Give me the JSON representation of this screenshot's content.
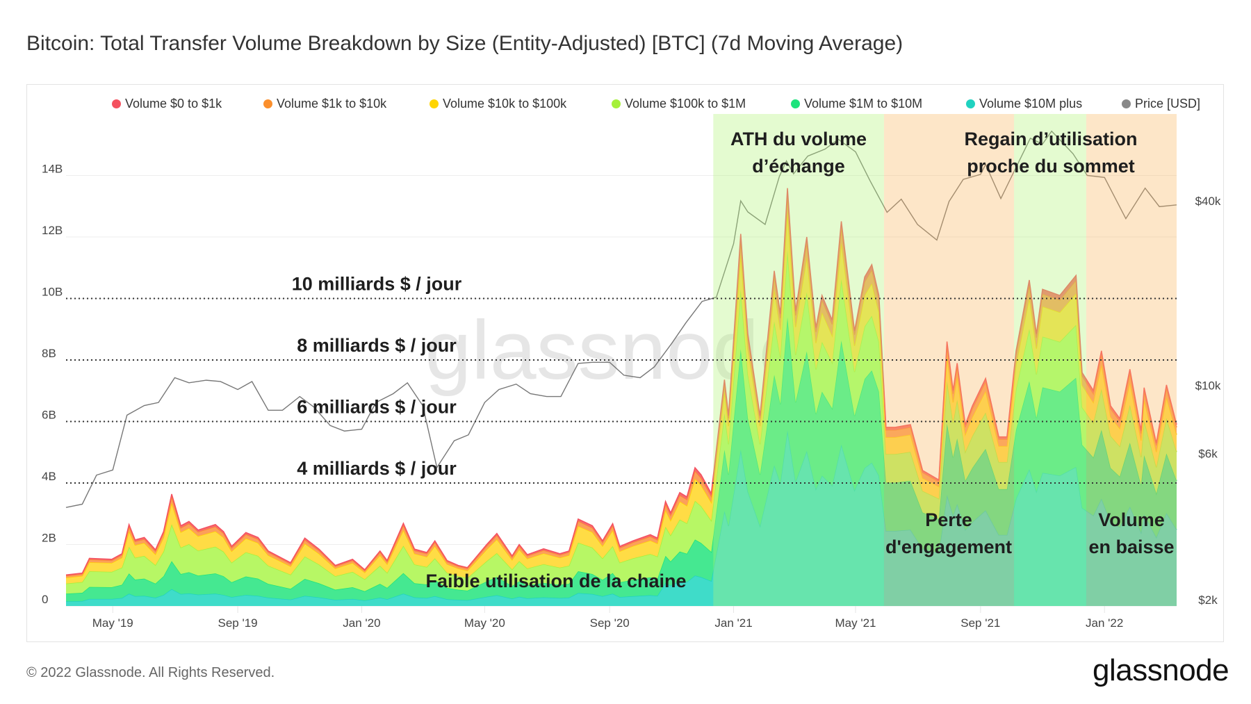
{
  "title": "Bitcoin: Total Transfer Volume Breakdown by Size (Entity-Adjusted) [BTC] (7d Moving Average)",
  "footer": "© 2022 Glassnode. All Rights Reserved.",
  "logo": "glassnode",
  "watermark": "glassnode",
  "legend": [
    {
      "label": "Volume $0 to $1k",
      "color": "#f4515f"
    },
    {
      "label": "Volume $1k to $10k",
      "color": "#fb8f2c"
    },
    {
      "label": "Volume $10k to $100k",
      "color": "#ffd500"
    },
    {
      "label": "Volume $100k to $1M",
      "color": "#a5f03a"
    },
    {
      "label": "Volume $1M to $10M",
      "color": "#1de37c"
    },
    {
      "label": "Volume $10M plus",
      "color": "#20d2c0"
    },
    {
      "label": "Price [USD]",
      "color": "#888888"
    }
  ],
  "annotations": {
    "levels": [
      {
        "label": "10 milliards $ / jour",
        "value": 10
      },
      {
        "label": "8 milliards $ / jour",
        "value": 8
      },
      {
        "label": "6 milliards $ / jour",
        "value": 6
      },
      {
        "label": "4 milliards $ / jour",
        "value": 4
      }
    ],
    "low_usage": "Faible utilisation de la chaine",
    "ath_1": "ATH du volume",
    "ath_2": "d’échange",
    "regain_1": "Regain d’utilisation",
    "regain_2": "proche du sommet",
    "loss_1": "Perte",
    "loss_2": "d'engagement",
    "down_1": "Volume",
    "down_2": "en baisse"
  },
  "chart_data": {
    "type": "area",
    "stacked": true,
    "title": "Bitcoin: Total Transfer Volume Breakdown by Size (Entity-Adjusted) [BTC] (7d Moving Average)",
    "xlim": [
      "2019-03-16",
      "2022-03-13"
    ],
    "ylim": [
      0,
      16
    ],
    "y_ticks": [
      {
        "label": "0",
        "value": 0
      },
      {
        "label": "2B",
        "value": 2
      },
      {
        "label": "4B",
        "value": 4
      },
      {
        "label": "6B",
        "value": 6
      },
      {
        "label": "8B",
        "value": 8
      },
      {
        "label": "10B",
        "value": 10
      },
      {
        "label": "12B",
        "value": 12
      },
      {
        "label": "14B",
        "value": 14
      }
    ],
    "x_ticks": [
      {
        "label": "May '19",
        "date": "2019-05-01"
      },
      {
        "label": "Sep '19",
        "date": "2019-09-01"
      },
      {
        "label": "Jan '20",
        "date": "2020-01-01"
      },
      {
        "label": "May '20",
        "date": "2020-05-01"
      },
      {
        "label": "Sep '20",
        "date": "2020-09-01"
      },
      {
        "label": "Jan '21",
        "date": "2021-01-01"
      },
      {
        "label": "May '21",
        "date": "2021-05-01"
      },
      {
        "label": "Sep '21",
        "date": "2021-09-01"
      },
      {
        "label": "Jan '22",
        "date": "2022-01-01"
      }
    ],
    "price_axis": {
      "scale": "log",
      "ylim": [
        2000,
        80000
      ],
      "ticks": [
        {
          "label": "$2k",
          "value": 2000
        },
        {
          "label": "$6k",
          "value": 6000
        },
        {
          "label": "$10k",
          "value": 10000
        },
        {
          "label": "$40k",
          "value": 40000
        }
      ]
    },
    "grid": true,
    "legend_position": "top",
    "highlight_periods": [
      {
        "start": "2020-12-12",
        "end": "2021-05-29",
        "color": "#b2f379"
      },
      {
        "start": "2021-05-29",
        "end": "2021-10-04",
        "color": "#f9b862"
      },
      {
        "start": "2021-10-04",
        "end": "2021-12-14",
        "color": "#b2f379"
      },
      {
        "start": "2021-12-14",
        "end": "2022-03-13",
        "color": "#f9b862"
      }
    ],
    "dates": [
      "2019-03-16",
      "2019-04-01",
      "2019-04-08",
      "2019-04-30",
      "2019-05-10",
      "2019-05-17",
      "2019-05-23",
      "2019-06-01",
      "2019-06-12",
      "2019-06-20",
      "2019-06-28",
      "2019-07-07",
      "2019-07-15",
      "2019-07-24",
      "2019-08-10",
      "2019-08-18",
      "2019-08-26",
      "2019-09-09",
      "2019-09-21",
      "2019-10-01",
      "2019-10-23",
      "2019-11-06",
      "2019-11-20",
      "2019-12-06",
      "2019-12-23",
      "2020-01-04",
      "2020-01-19",
      "2020-01-26",
      "2020-02-11",
      "2020-02-22",
      "2020-03-05",
      "2020-03-13",
      "2020-03-25",
      "2020-04-05",
      "2020-04-14",
      "2020-05-03",
      "2020-05-13",
      "2020-05-28",
      "2020-06-04",
      "2020-06-12",
      "2020-06-28",
      "2020-07-14",
      "2020-07-23",
      "2020-08-01",
      "2020-08-15",
      "2020-08-25",
      "2020-09-04",
      "2020-09-11",
      "2020-09-24",
      "2020-10-11",
      "2020-10-18",
      "2020-10-26",
      "2020-10-31",
      "2020-11-09",
      "2020-11-16",
      "2020-11-24",
      "2020-11-30",
      "2020-12-10",
      "2020-12-23",
      "2020-12-27",
      "2021-01-08",
      "2021-01-15",
      "2021-01-27",
      "2021-02-02",
      "2021-02-10",
      "2021-02-16",
      "2021-02-23",
      "2021-03-03",
      "2021-03-14",
      "2021-03-23",
      "2021-03-29",
      "2021-04-08",
      "2021-04-17",
      "2021-04-30",
      "2021-05-10",
      "2021-05-17",
      "2021-05-24",
      "2021-05-31",
      "2021-06-09",
      "2021-06-24",
      "2021-07-06",
      "2021-07-22",
      "2021-07-30",
      "2021-08-05",
      "2021-08-09",
      "2021-08-17",
      "2021-08-24",
      "2021-09-06",
      "2021-09-19",
      "2021-09-27",
      "2021-10-06",
      "2021-10-19",
      "2021-10-26",
      "2021-11-01",
      "2021-11-18",
      "2021-12-04",
      "2021-12-10",
      "2021-12-21",
      "2021-12-29",
      "2022-01-07",
      "2022-01-16",
      "2022-01-26",
      "2022-02-06",
      "2022-02-09",
      "2022-02-21",
      "2022-03-03",
      "2022-03-13"
    ],
    "series": [
      {
        "name": "Volume $10M plus",
        "color": "#20d2c0",
        "fill": "#3fdcc9",
        "values": [
          0.15,
          0.16,
          0.23,
          0.23,
          0.26,
          0.4,
          0.32,
          0.33,
          0.27,
          0.36,
          0.55,
          0.39,
          0.41,
          0.37,
          0.4,
          0.36,
          0.29,
          0.36,
          0.33,
          0.27,
          0.21,
          0.33,
          0.28,
          0.2,
          0.23,
          0.18,
          0.27,
          0.22,
          0.4,
          0.28,
          0.26,
          0.32,
          0.22,
          0.2,
          0.19,
          0.3,
          0.35,
          0.24,
          0.3,
          0.25,
          0.28,
          0.26,
          0.27,
          0.42,
          0.39,
          0.32,
          0.4,
          0.29,
          0.32,
          0.35,
          0.33,
          0.75,
          0.66,
          0.81,
          0.78,
          0.99,
          0.94,
          0.81,
          3.09,
          2.6,
          5.08,
          3.72,
          2.6,
          3.44,
          4.58,
          3.99,
          5.71,
          4.03,
          5.04,
          3.8,
          4.24,
          3.91,
          5.25,
          3.76,
          4.49,
          4.66,
          4.24,
          2.44,
          2.44,
          2.48,
          1.85,
          1.72,
          3.61,
          2.94,
          3.32,
          2.48,
          2.73,
          3.11,
          2.31,
          2.31,
          3.49,
          4.45,
          3.72,
          4.33,
          4.24,
          4.52,
          3.19,
          2.94,
          3.49,
          2.73,
          2.56,
          3.23,
          2.39,
          2.98,
          2.23,
          3.02,
          2.48
        ]
      },
      {
        "name": "Volume $1M to $10M",
        "color": "#1de37c",
        "fill": "#45e891",
        "values": [
          0.25,
          0.27,
          0.39,
          0.38,
          0.43,
          0.66,
          0.54,
          0.56,
          0.46,
          0.61,
          0.91,
          0.65,
          0.69,
          0.62,
          0.66,
          0.61,
          0.48,
          0.6,
          0.56,
          0.45,
          0.35,
          0.55,
          0.46,
          0.33,
          0.38,
          0.3,
          0.45,
          0.37,
          0.67,
          0.46,
          0.44,
          0.53,
          0.37,
          0.33,
          0.31,
          0.5,
          0.59,
          0.41,
          0.5,
          0.42,
          0.47,
          0.43,
          0.45,
          0.71,
          0.65,
          0.53,
          0.67,
          0.48,
          0.53,
          0.58,
          0.55,
          0.88,
          0.79,
          0.96,
          0.92,
          1.17,
          1.11,
          0.95,
          1.99,
          1.67,
          3.27,
          2.39,
          1.67,
          2.21,
          2.94,
          2.57,
          3.67,
          2.59,
          3.24,
          2.44,
          2.73,
          2.51,
          3.38,
          2.42,
          2.89,
          3.0,
          2.73,
          1.57,
          1.57,
          1.59,
          1.19,
          1.11,
          2.32,
          1.89,
          2.13,
          1.59,
          1.76,
          2.0,
          1.49,
          1.49,
          2.24,
          2.86,
          2.39,
          2.78,
          2.73,
          2.9,
          2.05,
          1.89,
          2.24,
          1.76,
          1.65,
          2.08,
          1.54,
          1.92,
          1.43,
          1.94,
          1.59
        ]
      },
      {
        "name": "Volume $100k to $1M",
        "color": "#a5f03a",
        "fill": "#b7f765",
        "values": [
          0.33,
          0.35,
          0.51,
          0.5,
          0.56,
          0.87,
          0.71,
          0.74,
          0.6,
          0.8,
          1.2,
          0.86,
          0.91,
          0.81,
          0.87,
          0.8,
          0.64,
          0.79,
          0.74,
          0.59,
          0.46,
          0.73,
          0.61,
          0.44,
          0.5,
          0.39,
          0.59,
          0.49,
          0.89,
          0.61,
          0.57,
          0.7,
          0.49,
          0.44,
          0.41,
          0.66,
          0.78,
          0.54,
          0.66,
          0.55,
          0.61,
          0.56,
          0.59,
          0.93,
          0.86,
          0.7,
          0.88,
          0.64,
          0.7,
          0.76,
          0.73,
          0.95,
          0.85,
          1.04,
          0.99,
          1.26,
          1.2,
          1.02,
          1.18,
          0.99,
          1.94,
          1.42,
          0.99,
          1.31,
          1.74,
          1.52,
          2.18,
          1.54,
          1.92,
          1.45,
          1.62,
          1.49,
          2.0,
          1.43,
          1.71,
          1.78,
          1.62,
          0.93,
          0.93,
          0.94,
          0.7,
          0.66,
          1.38,
          1.12,
          1.26,
          0.94,
          1.04,
          1.18,
          0.88,
          0.88,
          1.33,
          1.7,
          1.42,
          1.65,
          1.62,
          1.72,
          1.22,
          1.12,
          1.33,
          1.04,
          0.98,
          1.23,
          0.91,
          1.14,
          0.85,
          1.15,
          0.94
        ]
      },
      {
        "name": "Volume $10k to $100k",
        "color": "#ffd500",
        "fill": "#ffdc45",
        "values": [
          0.19,
          0.2,
          0.29,
          0.29,
          0.32,
          0.5,
          0.41,
          0.42,
          0.35,
          0.46,
          0.69,
          0.5,
          0.52,
          0.47,
          0.5,
          0.46,
          0.37,
          0.45,
          0.42,
          0.34,
          0.27,
          0.42,
          0.35,
          0.25,
          0.29,
          0.22,
          0.34,
          0.28,
          0.51,
          0.35,
          0.33,
          0.4,
          0.28,
          0.25,
          0.24,
          0.38,
          0.45,
          0.31,
          0.38,
          0.32,
          0.35,
          0.32,
          0.34,
          0.54,
          0.5,
          0.4,
          0.51,
          0.37,
          0.4,
          0.44,
          0.42,
          0.54,
          0.48,
          0.59,
          0.57,
          0.72,
          0.68,
          0.59,
          0.7,
          0.59,
          1.15,
          0.84,
          0.59,
          0.78,
          1.04,
          0.9,
          1.29,
          0.91,
          1.14,
          0.86,
          0.96,
          0.88,
          1.19,
          0.85,
          1.02,
          1.05,
          0.96,
          0.55,
          0.55,
          0.56,
          0.42,
          0.39,
          0.82,
          0.67,
          0.75,
          0.56,
          0.62,
          0.7,
          0.52,
          0.52,
          0.79,
          1.01,
          0.84,
          0.98,
          0.96,
          1.02,
          0.72,
          0.67,
          0.79,
          0.62,
          0.58,
          0.73,
          0.54,
          0.67,
          0.5,
          0.68,
          0.56
        ]
      },
      {
        "name": "Volume $1k to $10k",
        "color": "#fb8f2c",
        "fill": "#fca05a",
        "values": [
          0.06,
          0.06,
          0.09,
          0.08,
          0.09,
          0.15,
          0.12,
          0.12,
          0.1,
          0.13,
          0.2,
          0.14,
          0.15,
          0.14,
          0.15,
          0.13,
          0.11,
          0.13,
          0.12,
          0.1,
          0.08,
          0.12,
          0.1,
          0.07,
          0.08,
          0.06,
          0.1,
          0.08,
          0.15,
          0.1,
          0.1,
          0.12,
          0.08,
          0.07,
          0.07,
          0.11,
          0.13,
          0.09,
          0.11,
          0.09,
          0.1,
          0.09,
          0.1,
          0.16,
          0.14,
          0.12,
          0.15,
          0.11,
          0.12,
          0.13,
          0.12,
          0.19,
          0.17,
          0.2,
          0.2,
          0.25,
          0.23,
          0.2,
          0.29,
          0.25,
          0.48,
          0.35,
          0.25,
          0.33,
          0.44,
          0.38,
          0.54,
          0.38,
          0.48,
          0.36,
          0.4,
          0.37,
          0.5,
          0.36,
          0.43,
          0.44,
          0.4,
          0.23,
          0.23,
          0.24,
          0.18,
          0.16,
          0.34,
          0.28,
          0.32,
          0.24,
          0.26,
          0.3,
          0.22,
          0.22,
          0.33,
          0.42,
          0.35,
          0.41,
          0.4,
          0.43,
          0.3,
          0.28,
          0.33,
          0.26,
          0.24,
          0.31,
          0.23,
          0.28,
          0.21,
          0.29,
          0.24
        ]
      },
      {
        "name": "Volume $0 to $1k",
        "color": "#f4515f",
        "fill": "#f76b6b",
        "values": [
          0.03,
          0.03,
          0.04,
          0.04,
          0.04,
          0.07,
          0.05,
          0.06,
          0.05,
          0.06,
          0.09,
          0.07,
          0.07,
          0.06,
          0.07,
          0.06,
          0.05,
          0.06,
          0.06,
          0.04,
          0.04,
          0.06,
          0.05,
          0.03,
          0.04,
          0.03,
          0.04,
          0.04,
          0.07,
          0.05,
          0.04,
          0.05,
          0.04,
          0.03,
          0.03,
          0.05,
          0.06,
          0.04,
          0.05,
          0.04,
          0.05,
          0.04,
          0.04,
          0.07,
          0.07,
          0.05,
          0.07,
          0.05,
          0.05,
          0.06,
          0.06,
          0.09,
          0.08,
          0.09,
          0.09,
          0.11,
          0.11,
          0.09,
          0.11,
          0.09,
          0.18,
          0.13,
          0.09,
          0.12,
          0.16,
          0.14,
          0.2,
          0.14,
          0.18,
          0.14,
          0.15,
          0.14,
          0.19,
          0.13,
          0.16,
          0.17,
          0.15,
          0.09,
          0.09,
          0.09,
          0.07,
          0.06,
          0.13,
          0.11,
          0.12,
          0.09,
          0.1,
          0.11,
          0.08,
          0.08,
          0.12,
          0.16,
          0.13,
          0.15,
          0.15,
          0.16,
          0.11,
          0.11,
          0.12,
          0.1,
          0.09,
          0.12,
          0.09,
          0.11,
          0.08,
          0.11,
          0.09
        ]
      }
    ],
    "price": {
      "name": "Price [USD]",
      "color": "#777777",
      "dates": [
        "2019-03-16",
        "2019-04-01",
        "2019-04-15",
        "2019-05-01",
        "2019-05-15",
        "2019-06-01",
        "2019-06-15",
        "2019-07-01",
        "2019-07-15",
        "2019-08-01",
        "2019-08-15",
        "2019-09-01",
        "2019-09-15",
        "2019-10-01",
        "2019-10-15",
        "2019-11-01",
        "2019-11-15",
        "2019-12-01",
        "2019-12-15",
        "2020-01-01",
        "2020-01-15",
        "2020-02-01",
        "2020-02-15",
        "2020-03-01",
        "2020-03-15",
        "2020-04-01",
        "2020-04-15",
        "2020-05-01",
        "2020-05-15",
        "2020-06-01",
        "2020-06-15",
        "2020-07-01",
        "2020-07-15",
        "2020-08-01",
        "2020-08-15",
        "2020-09-01",
        "2020-09-15",
        "2020-10-01",
        "2020-10-15",
        "2020-11-01",
        "2020-11-15",
        "2020-12-01",
        "2020-12-15",
        "2021-01-01",
        "2021-01-08",
        "2021-01-15",
        "2021-02-01",
        "2021-02-15",
        "2021-02-22",
        "2021-03-01",
        "2021-03-15",
        "2021-04-01",
        "2021-04-14",
        "2021-05-01",
        "2021-05-15",
        "2021-06-01",
        "2021-06-15",
        "2021-07-01",
        "2021-07-20",
        "2021-08-01",
        "2021-08-15",
        "2021-09-01",
        "2021-09-06",
        "2021-09-21",
        "2021-10-01",
        "2021-10-20",
        "2021-11-01",
        "2021-11-10",
        "2021-12-01",
        "2021-12-15",
        "2022-01-01",
        "2022-01-22",
        "2022-02-10",
        "2022-02-24",
        "2022-03-13"
      ],
      "values": [
        4000,
        4100,
        5100,
        5300,
        8000,
        8600,
        8800,
        10600,
        10200,
        10400,
        10300,
        9700,
        10300,
        8300,
        8300,
        9200,
        8500,
        7400,
        7100,
        7200,
        8800,
        9400,
        10200,
        8600,
        5400,
        6600,
        6900,
        8800,
        9700,
        10100,
        9400,
        9200,
        9200,
        11800,
        11900,
        11900,
        10800,
        10600,
        11500,
        13700,
        16000,
        18800,
        19400,
        29000,
        40000,
        36800,
        33500,
        48000,
        54000,
        49000,
        56000,
        59000,
        63500,
        57800,
        46700,
        36700,
        40500,
        33500,
        29800,
        39800,
        47000,
        48800,
        52600,
        40700,
        47600,
        64000,
        61300,
        67500,
        57000,
        48400,
        47700,
        35000,
        44000,
        38300,
        38800
      ]
    }
  }
}
